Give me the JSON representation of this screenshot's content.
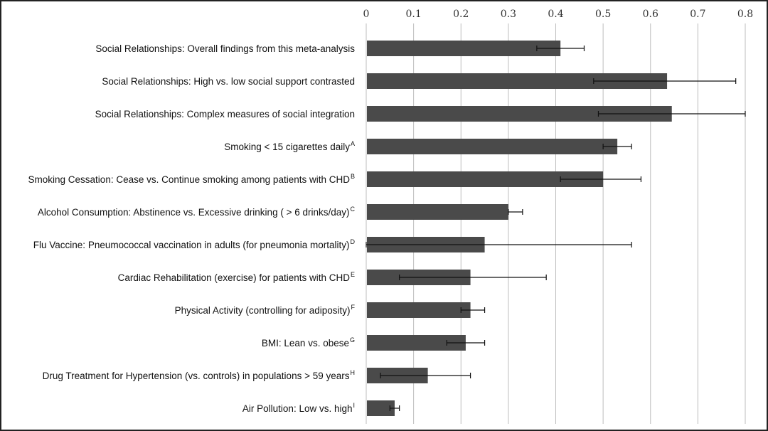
{
  "chart_data": {
    "type": "bar",
    "orientation": "horizontal",
    "xlim": [
      0,
      0.8
    ],
    "x_ticks": [
      "0",
      "0.1",
      "0.2",
      "0.3",
      "0.4",
      "0.5",
      "0.6",
      "0.7",
      "0.8"
    ],
    "x_tick_values": [
      0,
      0.1,
      0.2,
      0.3,
      0.4,
      0.5,
      0.6,
      0.7,
      0.8
    ],
    "x_axis_position": "top",
    "grid": "vertical",
    "title": "",
    "xlabel": "",
    "ylabel": "",
    "bar_color": "#4a4a4a",
    "categories": [
      {
        "label": "Social Relationships: Overall findings from this meta-analysis",
        "sup": ""
      },
      {
        "label": "Social Relationships: High vs. low social support contrasted",
        "sup": ""
      },
      {
        "label": "Social Relationships: Complex measures of social integration",
        "sup": ""
      },
      {
        "label": "Smoking < 15 cigarettes daily",
        "sup": "A"
      },
      {
        "label": "Smoking Cessation: Cease vs. Continue smoking among patients with CHD",
        "sup": "B"
      },
      {
        "label": "Alcohol Consumption: Abstinence vs. Excessive drinking ( > 6 drinks/day)",
        "sup": "C"
      },
      {
        "label": "Flu Vaccine: Pneumococcal vaccination in adults (for pneumonia mortality)",
        "sup": "D"
      },
      {
        "label": "Cardiac Rehabilitation (exercise) for patients with CHD",
        "sup": "E"
      },
      {
        "label": "Physical Activity (controlling for adiposity)",
        "sup": "F"
      },
      {
        "label": "BMI: Lean vs. obese",
        "sup": "G"
      },
      {
        "label": "Drug Treatment for Hypertension (vs. controls) in populations > 59 years",
        "sup": "H"
      },
      {
        "label": "Air Pollution: Low vs. high",
        "sup": "I"
      }
    ],
    "values": [
      0.41,
      0.635,
      0.645,
      0.53,
      0.5,
      0.3,
      0.25,
      0.22,
      0.22,
      0.21,
      0.13,
      0.06
    ],
    "error_low": [
      0.36,
      0.48,
      0.49,
      0.5,
      0.41,
      0.3,
      0.0,
      0.07,
      0.2,
      0.17,
      0.03,
      0.05
    ],
    "error_high": [
      0.46,
      0.78,
      0.8,
      0.56,
      0.58,
      0.33,
      0.56,
      0.38,
      0.25,
      0.25,
      0.22,
      0.07
    ]
  }
}
